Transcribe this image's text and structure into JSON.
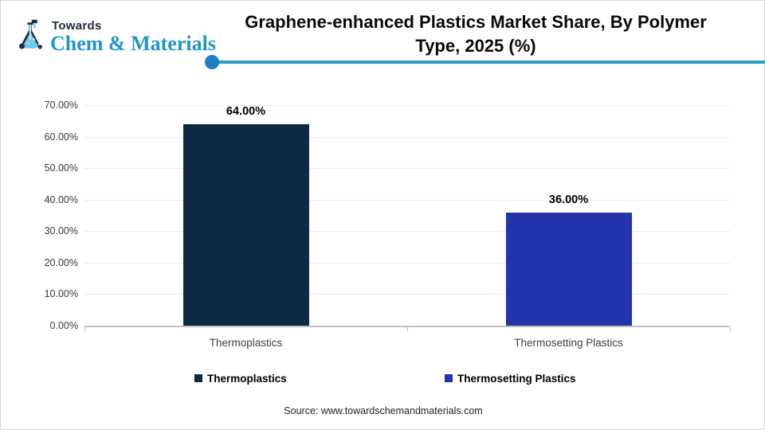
{
  "logo": {
    "towards": "Towards",
    "brand": "Chem & Materials"
  },
  "header": {
    "title": "Graphene-enhanced Plastics Market Share, By Polymer Type, 2025 (%)"
  },
  "chart_data": {
    "type": "bar",
    "title": "Graphene-enhanced Plastics Market Share, By Polymer Type, 2025 (%)",
    "categories": [
      "Thermoplastics",
      "Thermosetting Plastics"
    ],
    "values": [
      64,
      36
    ],
    "value_labels": [
      "64.00%",
      "36.00%"
    ],
    "bar_colors": [
      "#0f2a44",
      "#2134ab"
    ],
    "xlabel": "",
    "ylabel": "",
    "ylim": [
      0,
      70
    ],
    "ytick_step": 10,
    "ytick_labels": [
      "0.00%",
      "10.00%",
      "20.00%",
      "30.00%",
      "40.00%",
      "50.00%",
      "60.00%",
      "70.00%"
    ],
    "grid": true,
    "legend_position": "bottom",
    "legend": [
      {
        "label": "Thermoplastics",
        "color": "#13293f"
      },
      {
        "label": "Thermosetting Plastics",
        "color": "#2134ab"
      }
    ]
  },
  "footer": {
    "source": "Source: www.towardschemandmaterials.com"
  },
  "colors": {
    "accent_line": "#2e9fb8",
    "accent_dot": "#1b80c5",
    "bar_primary": "#0f2a44",
    "bar_secondary": "#2134ab",
    "logo_blue": "#2196c9",
    "logo_navy": "#1f2b3d"
  }
}
